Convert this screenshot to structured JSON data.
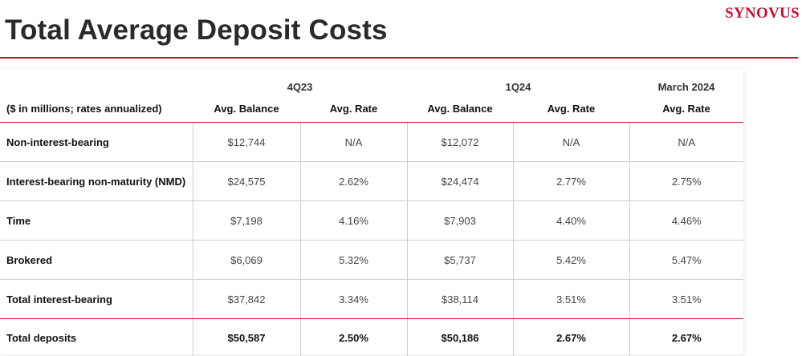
{
  "header": {
    "title": "Total Average Deposit Costs",
    "logo": "SYNOVUS"
  },
  "table": {
    "groups": [
      "4Q23",
      "1Q24",
      "March 2024"
    ],
    "columns": [
      "($ in millions; rates annualized)",
      "Avg. Balance",
      "Avg. Rate",
      "Avg. Balance",
      "Avg. Rate",
      "Avg. Rate"
    ],
    "rows": [
      [
        "Non-interest-bearing",
        "$12,744",
        "N/A",
        "$12,072",
        "N/A",
        "N/A"
      ],
      [
        "Interest-bearing non-maturity (NMD)",
        "$24,575",
        "2.62%",
        "$24,474",
        "2.77%",
        "2.75%"
      ],
      [
        "Time",
        "$7,198",
        "4.16%",
        "$7,903",
        "4.40%",
        "4.46%"
      ],
      [
        "Brokered",
        "$6,069",
        "5.32%",
        "$5,737",
        "5.42%",
        "5.47%"
      ],
      [
        "Total interest-bearing",
        "$37,842",
        "3.34%",
        "$38,114",
        "3.51%",
        "3.51%"
      ]
    ],
    "total": [
      "Total deposits",
      "$50,587",
      "2.50%",
      "$50,186",
      "2.67%",
      "2.67%"
    ]
  },
  "colors": {
    "accent": "#c8102e",
    "grid": "#cfcfcf"
  }
}
